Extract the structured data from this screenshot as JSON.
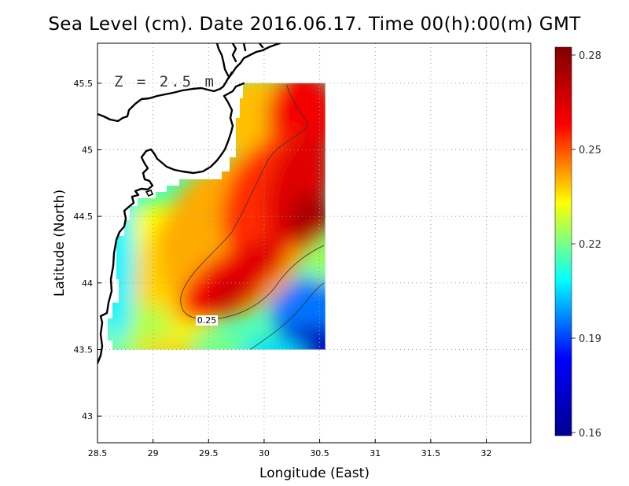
{
  "title": "Sea Level (cm). Date 2016.06.17. Time 00(h):00(m) GMT",
  "depth_label": "Z = 2.5 m",
  "chart_data": {
    "type": "heatmap",
    "title": "Sea Level (cm). Date 2016.06.17. Time 00(h):00(m) GMT",
    "xlabel": "Longitude (East)",
    "ylabel": "Latitude (North)",
    "xlim": [
      28.5,
      32.4
    ],
    "ylim": [
      42.8,
      45.8
    ],
    "x_ticks": [
      "28.5",
      "29",
      "29.5",
      "30",
      "30.5",
      "31",
      "31.5",
      "32"
    ],
    "y_ticks": [
      "43",
      "43.5",
      "44",
      "44.5",
      "45",
      "45.5"
    ],
    "grid": true,
    "colorbar": {
      "min": 0.16,
      "max": 0.28,
      "ticks": [
        "0.16",
        "0.19",
        "0.22",
        "0.25",
        "0.28"
      ],
      "colormap": [
        "#00008f",
        "#0000ff",
        "#00ffff",
        "#ffff00",
        "#ff0000",
        "#800000"
      ]
    },
    "contour_label": "0.25",
    "contour_level": 0.25,
    "field_extent": {
      "lon": [
        28.65,
        30.55
      ],
      "lat": [
        43.5,
        45.5
      ]
    },
    "field_description": "High sea level (red, up to ~0.27) centered near 30.4E 44.5N and a tongue toward 29.7E 43.9N; lower values (blue, ~0.17) in the southeast corner; green/cyan (~0.21) along the western coast."
  }
}
